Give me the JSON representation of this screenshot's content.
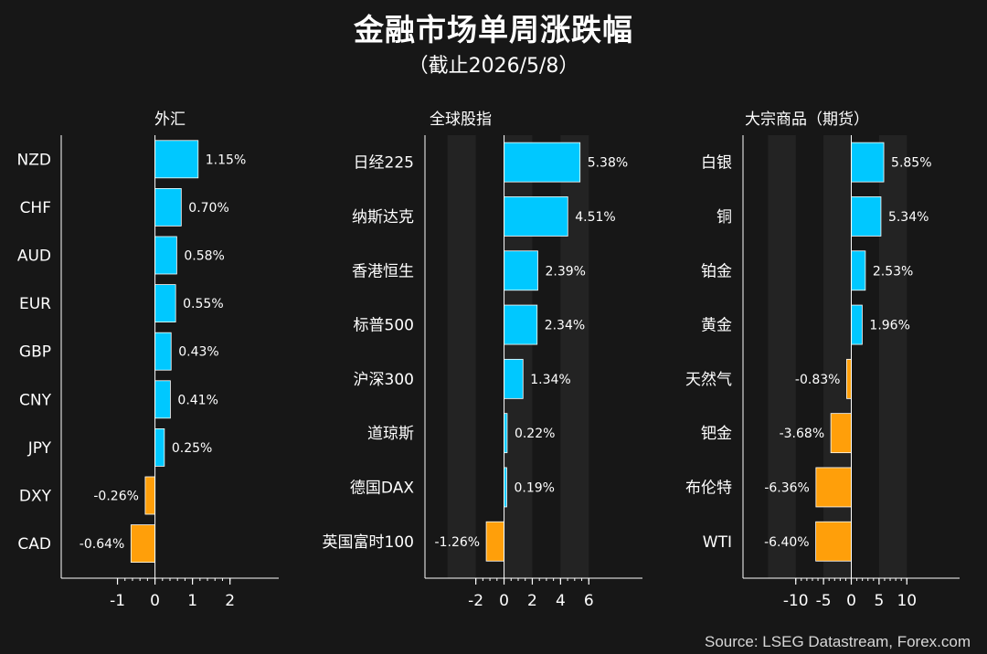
{
  "title": "金融市场单周涨跌幅",
  "subtitle": "（截止2026/5/8）",
  "source": "Source: LSEG Datastream, Forex.com",
  "colors": {
    "positive": "#00c8ff",
    "negative": "#ff9f0a",
    "background": "#171717",
    "band": "#232323"
  },
  "chart_data": [
    {
      "type": "bar",
      "orientation": "horizontal",
      "title": "外汇",
      "unit": "%",
      "categories": [
        "NZD",
        "CHF",
        "AUD",
        "EUR",
        "GBP",
        "CNY",
        "JPY",
        "DXY",
        "CAD"
      ],
      "values": [
        1.15,
        0.7,
        0.58,
        0.55,
        0.43,
        0.41,
        0.25,
        -0.26,
        -0.64
      ],
      "labels": [
        "1.15%",
        "0.70%",
        "0.58%",
        "0.55%",
        "0.43%",
        "0.41%",
        "0.25%",
        "-0.26%",
        "-0.64%"
      ],
      "xlim": [
        -2.5,
        3.3
      ],
      "xticks": [
        -1,
        0,
        1,
        2
      ],
      "xtick_labels": [
        "-1",
        "0",
        "1",
        "2"
      ],
      "minor_step": 0.2,
      "bands": []
    },
    {
      "type": "bar",
      "orientation": "horizontal",
      "title": "全球股指",
      "unit": "%",
      "categories": [
        "日经225",
        "纳斯达克",
        "香港恒生",
        "标普500",
        "沪深300",
        "道琼斯",
        "德国DAX",
        "英国富时100"
      ],
      "values": [
        5.38,
        4.51,
        2.39,
        2.34,
        1.34,
        0.22,
        0.19,
        -1.26
      ],
      "labels": [
        "5.38%",
        "4.51%",
        "2.39%",
        "2.34%",
        "1.34%",
        "0.22%",
        "0.19%",
        "-1.26%"
      ],
      "xlim": [
        -5.6,
        9.8
      ],
      "xticks": [
        -2,
        0,
        2,
        4,
        6
      ],
      "xtick_labels": [
        "-2",
        "0",
        "2",
        "4",
        "6"
      ],
      "minor_step": 0.5,
      "bands": [
        [
          -4,
          -2
        ],
        [
          0,
          2
        ],
        [
          4,
          6
        ]
      ]
    },
    {
      "type": "bar",
      "orientation": "horizontal",
      "title": "大宗商品（期货）",
      "unit": "%",
      "categories": [
        "白银",
        "铜",
        "铂金",
        "黄金",
        "天然气",
        "钯金",
        "布伦特",
        "WTI"
      ],
      "values": [
        5.85,
        5.34,
        2.53,
        1.96,
        -0.83,
        -3.68,
        -6.36,
        -6.4
      ],
      "labels": [
        "5.85%",
        "5.34%",
        "2.53%",
        "1.96%",
        "-0.83%",
        "-3.68%",
        "-6.36%",
        "-6.40%"
      ],
      "xlim": [
        -19.5,
        19.5
      ],
      "xticks": [
        -10,
        -5,
        0,
        5,
        10
      ],
      "xtick_labels": [
        "-10",
        "-5",
        "0",
        "5",
        "10"
      ],
      "minor_step": 1,
      "bands": [
        [
          -15,
          -10
        ],
        [
          -5,
          0
        ],
        [
          5,
          10
        ]
      ]
    }
  ]
}
